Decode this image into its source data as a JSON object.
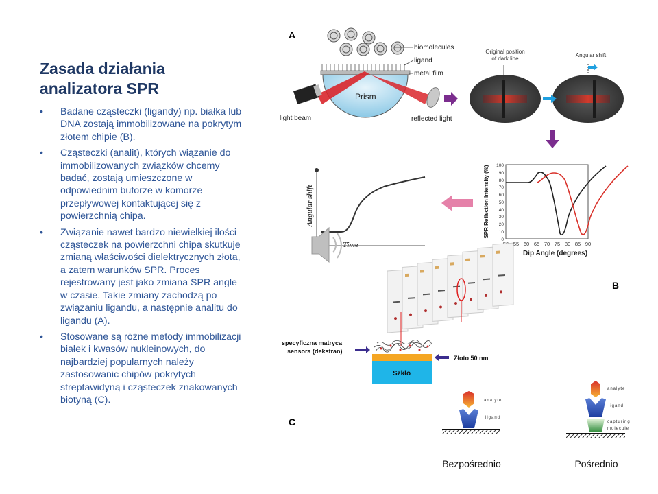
{
  "slide": {
    "title_line1": "Zasada działania",
    "title_line2": "analizatora SPR",
    "bullets": [
      "Badane cząsteczki (ligandy) np. białka lub DNA zostają immobilizowane na pokrytym złotem chipie (B).",
      "Cząsteczki (analit), których wiązanie do immobilizowanych związków chcemy badać, zostają umieszczone w odpowiednim buforze w komorze przepływowej kontaktującej się z powierzchnią chipa.",
      "Związanie nawet bardzo niewielkiej ilości cząsteczek  na powierzchni chipa skutkuje zmianą właściwości dielektrycznych złota, a zatem warunków SPR. Proces rejestrowany jest jako zmiana SPR angle w czasie. Takie zmiany zachodzą po związaniu ligandu, a następnie analitu do ligandu (A).",
      "Stosowane są różne metody immobilizacji białek i kwasów nukleinowych, do najbardziej popularnych należy zastosowanic chipów pokrytych streptawidyną i cząsteczek znakowanych biotyną  (C)."
    ],
    "bullet_symbol": "•"
  },
  "panel_labels": {
    "a": "A",
    "b": "B",
    "c": "C"
  },
  "prism_diagram": {
    "biomolecules": "biomolecules",
    "ligand": "ligand",
    "metal_film": "metal film",
    "prism": "Prism",
    "light_beam": "light beam",
    "reflected_light": "reflected light"
  },
  "dark_line": {
    "original_position_line1": "Original position",
    "original_position_line2": "of dark line",
    "angular_shift": "Angular shift"
  },
  "sensorgram": {
    "y_label": "Angular shift",
    "x_label": "Time"
  },
  "spr_curve": {
    "y_label": "SPR Reflection Intensity (%)",
    "x_label": "Dip Angle (degrees)",
    "x_ticks": [
      "50",
      "55",
      "60",
      "65",
      "70",
      "75",
      "80",
      "85",
      "90"
    ],
    "y_ticks": [
      "100",
      "90",
      "80",
      "70",
      "60",
      "50",
      "40",
      "30",
      "20",
      "10",
      "0"
    ]
  },
  "chip": {
    "matrix_line1": "specyficzna matryca",
    "matrix_line2": "sensora (dekstran)",
    "gold": "Złoto 50 nm",
    "glass": "Szkło"
  },
  "immobilization": {
    "direct_analyte": "analyte",
    "direct_ligand": "ligand",
    "direct_caption": "Bezpośrednio",
    "indirect_analyte": "analyte",
    "indirect_ligand": "ligand",
    "indirect_capturing1": "capturing",
    "indirect_capturing2": "molecule",
    "indirect_caption": "Pośrednio"
  },
  "colors": {
    "title": "#1f3864",
    "bullet_text": "#2e5597",
    "laser": "#d9262b",
    "arrow_purple": "#7b2d8e",
    "gold": "#f5a623",
    "glass": "#1fb5e8",
    "curve_red": "#d9322b"
  }
}
